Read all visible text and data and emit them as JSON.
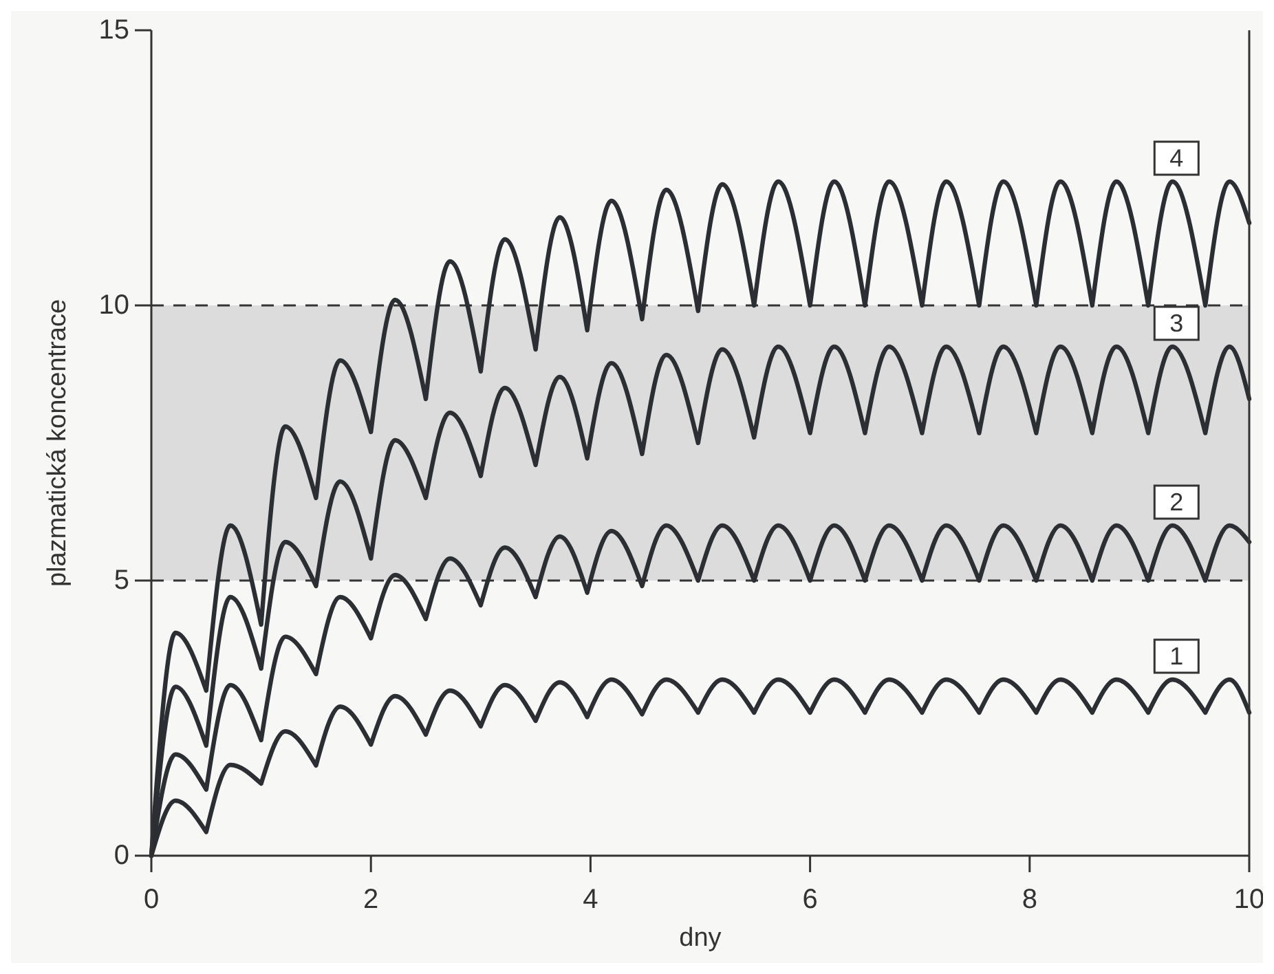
{
  "chart_data": {
    "type": "line",
    "xlabel": "dny",
    "ylabel": "plazmatická koncentrace",
    "xlim": [
      0,
      10
    ],
    "ylim": [
      0,
      15
    ],
    "xticks": [
      0,
      2,
      4,
      6,
      8,
      10
    ],
    "yticks": [
      0,
      5,
      10,
      15
    ],
    "grid": false,
    "line_style": "solid",
    "x": [
      0,
      0.22,
      0.5,
      0.72,
      1.0,
      1.22,
      1.5,
      1.72,
      2.0,
      2.22,
      2.5,
      2.72,
      3.0,
      3.22,
      3.5,
      3.72,
      3.97,
      4.19,
      4.47,
      4.69,
      4.98,
      5.2,
      5.49,
      5.71,
      6.0,
      6.22,
      6.5,
      6.72,
      7.02,
      7.24,
      7.54,
      7.76,
      8.06,
      8.28,
      8.57,
      8.79,
      9.08,
      9.3,
      9.6,
      9.82,
      10
    ],
    "series": [
      {
        "name": "1",
        "color": "#2b2f33",
        "values": [
          0,
          1.0,
          0.43,
          1.65,
          1.31,
          2.26,
          1.64,
          2.71,
          2.02,
          2.9,
          2.2,
          3.0,
          2.35,
          3.1,
          2.45,
          3.15,
          2.52,
          3.2,
          2.57,
          3.2,
          2.6,
          3.2,
          2.6,
          3.2,
          2.6,
          3.2,
          2.6,
          3.2,
          2.6,
          3.2,
          2.6,
          3.2,
          2.6,
          3.2,
          2.6,
          3.2,
          2.6,
          3.2,
          2.6,
          3.2,
          2.6
        ]
      },
      {
        "name": "2",
        "color": "#2b2f33",
        "values": [
          0,
          1.84,
          1.2,
          3.1,
          2.1,
          3.98,
          3.3,
          4.7,
          3.95,
          5.1,
          4.3,
          5.4,
          4.55,
          5.6,
          4.7,
          5.8,
          4.78,
          5.9,
          4.9,
          6.0,
          5.0,
          6.0,
          5.0,
          6.0,
          5.0,
          6.0,
          5.0,
          6.0,
          5.0,
          6.0,
          5.0,
          6.0,
          5.0,
          6.0,
          5.0,
          6.0,
          5.0,
          6.0,
          5.0,
          6.0,
          5.7
        ]
      },
      {
        "name": "3",
        "color": "#2b2f33",
        "values": [
          0,
          3.07,
          2.0,
          4.7,
          3.4,
          5.7,
          4.9,
          6.8,
          5.4,
          7.55,
          6.5,
          8.05,
          6.9,
          8.5,
          7.1,
          8.7,
          7.22,
          8.95,
          7.3,
          9.1,
          7.5,
          9.2,
          7.6,
          9.25,
          7.68,
          9.25,
          7.68,
          9.25,
          7.68,
          9.25,
          7.68,
          9.25,
          7.68,
          9.25,
          7.68,
          9.25,
          7.68,
          9.25,
          7.68,
          9.25,
          8.3
        ]
      },
      {
        "name": "4",
        "color": "#2b2f33",
        "values": [
          0,
          4.05,
          3.0,
          6.0,
          4.2,
          7.8,
          6.5,
          9.0,
          7.7,
          10.1,
          8.3,
          10.8,
          8.8,
          11.2,
          9.2,
          11.6,
          9.55,
          11.9,
          9.75,
          12.1,
          9.9,
          12.2,
          10,
          12.25,
          10,
          12.25,
          10,
          12.25,
          10,
          12.25,
          10,
          12.25,
          10,
          12.25,
          10,
          12.25,
          10,
          12.25,
          10,
          12.25,
          11.5
        ]
      }
    ],
    "bands": [
      {
        "axis": "y",
        "from": 5,
        "to": 10,
        "color": "#dcdcdc"
      }
    ],
    "ref_lines": [
      {
        "axis": "y",
        "value": 5,
        "line_style": "dashed",
        "color": "#333333"
      },
      {
        "axis": "y",
        "value": 10,
        "line_style": "dashed",
        "color": "#333333"
      }
    ]
  }
}
